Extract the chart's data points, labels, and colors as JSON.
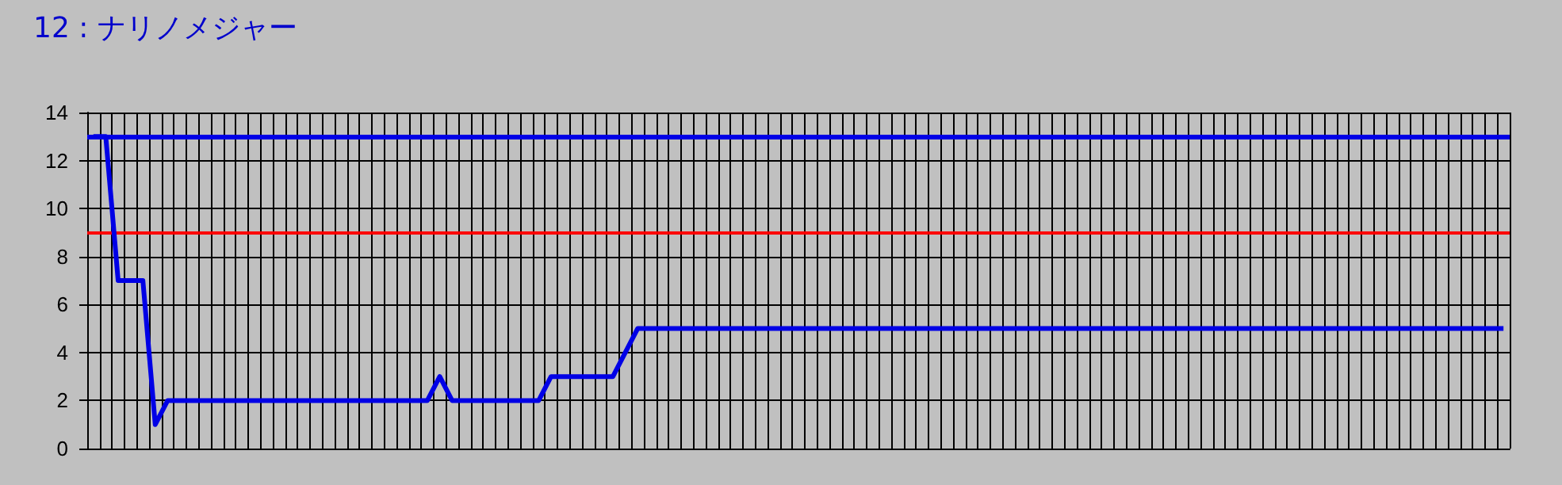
{
  "chart_data": {
    "type": "line",
    "title": "12 : ナリノメジャー",
    "categories": [
      null,
      null,
      null,
      null,
      null,
      null,
      null,
      null,
      null,
      null,
      null,
      null,
      null,
      null,
      null,
      null,
      null,
      null,
      null,
      null,
      null,
      null,
      null,
      null,
      null,
      null,
      null,
      null,
      null,
      null,
      null,
      null,
      null,
      null,
      null,
      null,
      null,
      null,
      null,
      null,
      null,
      null,
      null,
      null,
      null,
      null,
      null,
      null,
      null,
      null,
      null,
      null,
      null,
      null,
      null,
      null,
      null,
      null,
      null,
      null,
      null,
      null,
      null,
      null,
      null,
      null,
      null,
      null,
      null,
      null,
      null,
      null,
      null,
      null,
      null,
      null,
      null,
      null,
      null,
      null,
      null,
      null,
      null,
      null,
      null,
      null,
      null,
      null,
      null,
      null,
      null,
      null,
      null,
      null,
      null,
      null,
      null,
      null,
      null,
      null,
      null,
      null,
      null,
      null,
      null,
      null,
      null,
      null,
      null,
      null,
      null,
      null,
      null,
      null,
      null
    ],
    "values": [
      13,
      13,
      7,
      7,
      7,
      1,
      2,
      2,
      2,
      2,
      2,
      2,
      2,
      2,
      2,
      2,
      2,
      2,
      2,
      2,
      2,
      2,
      2,
      2,
      2,
      2,
      2,
      2,
      3,
      2,
      2,
      2,
      2,
      2,
      2,
      2,
      2,
      3,
      3,
      3,
      3,
      3,
      3,
      4,
      5,
      5,
      5,
      5,
      5,
      5,
      5,
      5,
      5,
      5,
      5,
      5,
      5,
      5,
      5,
      5,
      5,
      5,
      5,
      5,
      5,
      5,
      5,
      5,
      5,
      5,
      5,
      5,
      5,
      5,
      5,
      5,
      5,
      5,
      5,
      5,
      5,
      5,
      5,
      5,
      5,
      5,
      5,
      5,
      5,
      5,
      5,
      5,
      5,
      5,
      5,
      5,
      5,
      5,
      5,
      5,
      5,
      5,
      5,
      5,
      5,
      5,
      5,
      5,
      5,
      5,
      5,
      5,
      5,
      5,
      5
    ],
    "color": "#0000e6",
    "ylim": [
      0,
      14
    ],
    "yticks": [
      0,
      2,
      4,
      6,
      8,
      10,
      12,
      14
    ],
    "grid": true,
    "ref_lines": [
      {
        "axis": "y",
        "value": 13,
        "color": "#0000e6"
      },
      {
        "axis": "y",
        "value": 9,
        "color": "#ff0000"
      }
    ]
  }
}
